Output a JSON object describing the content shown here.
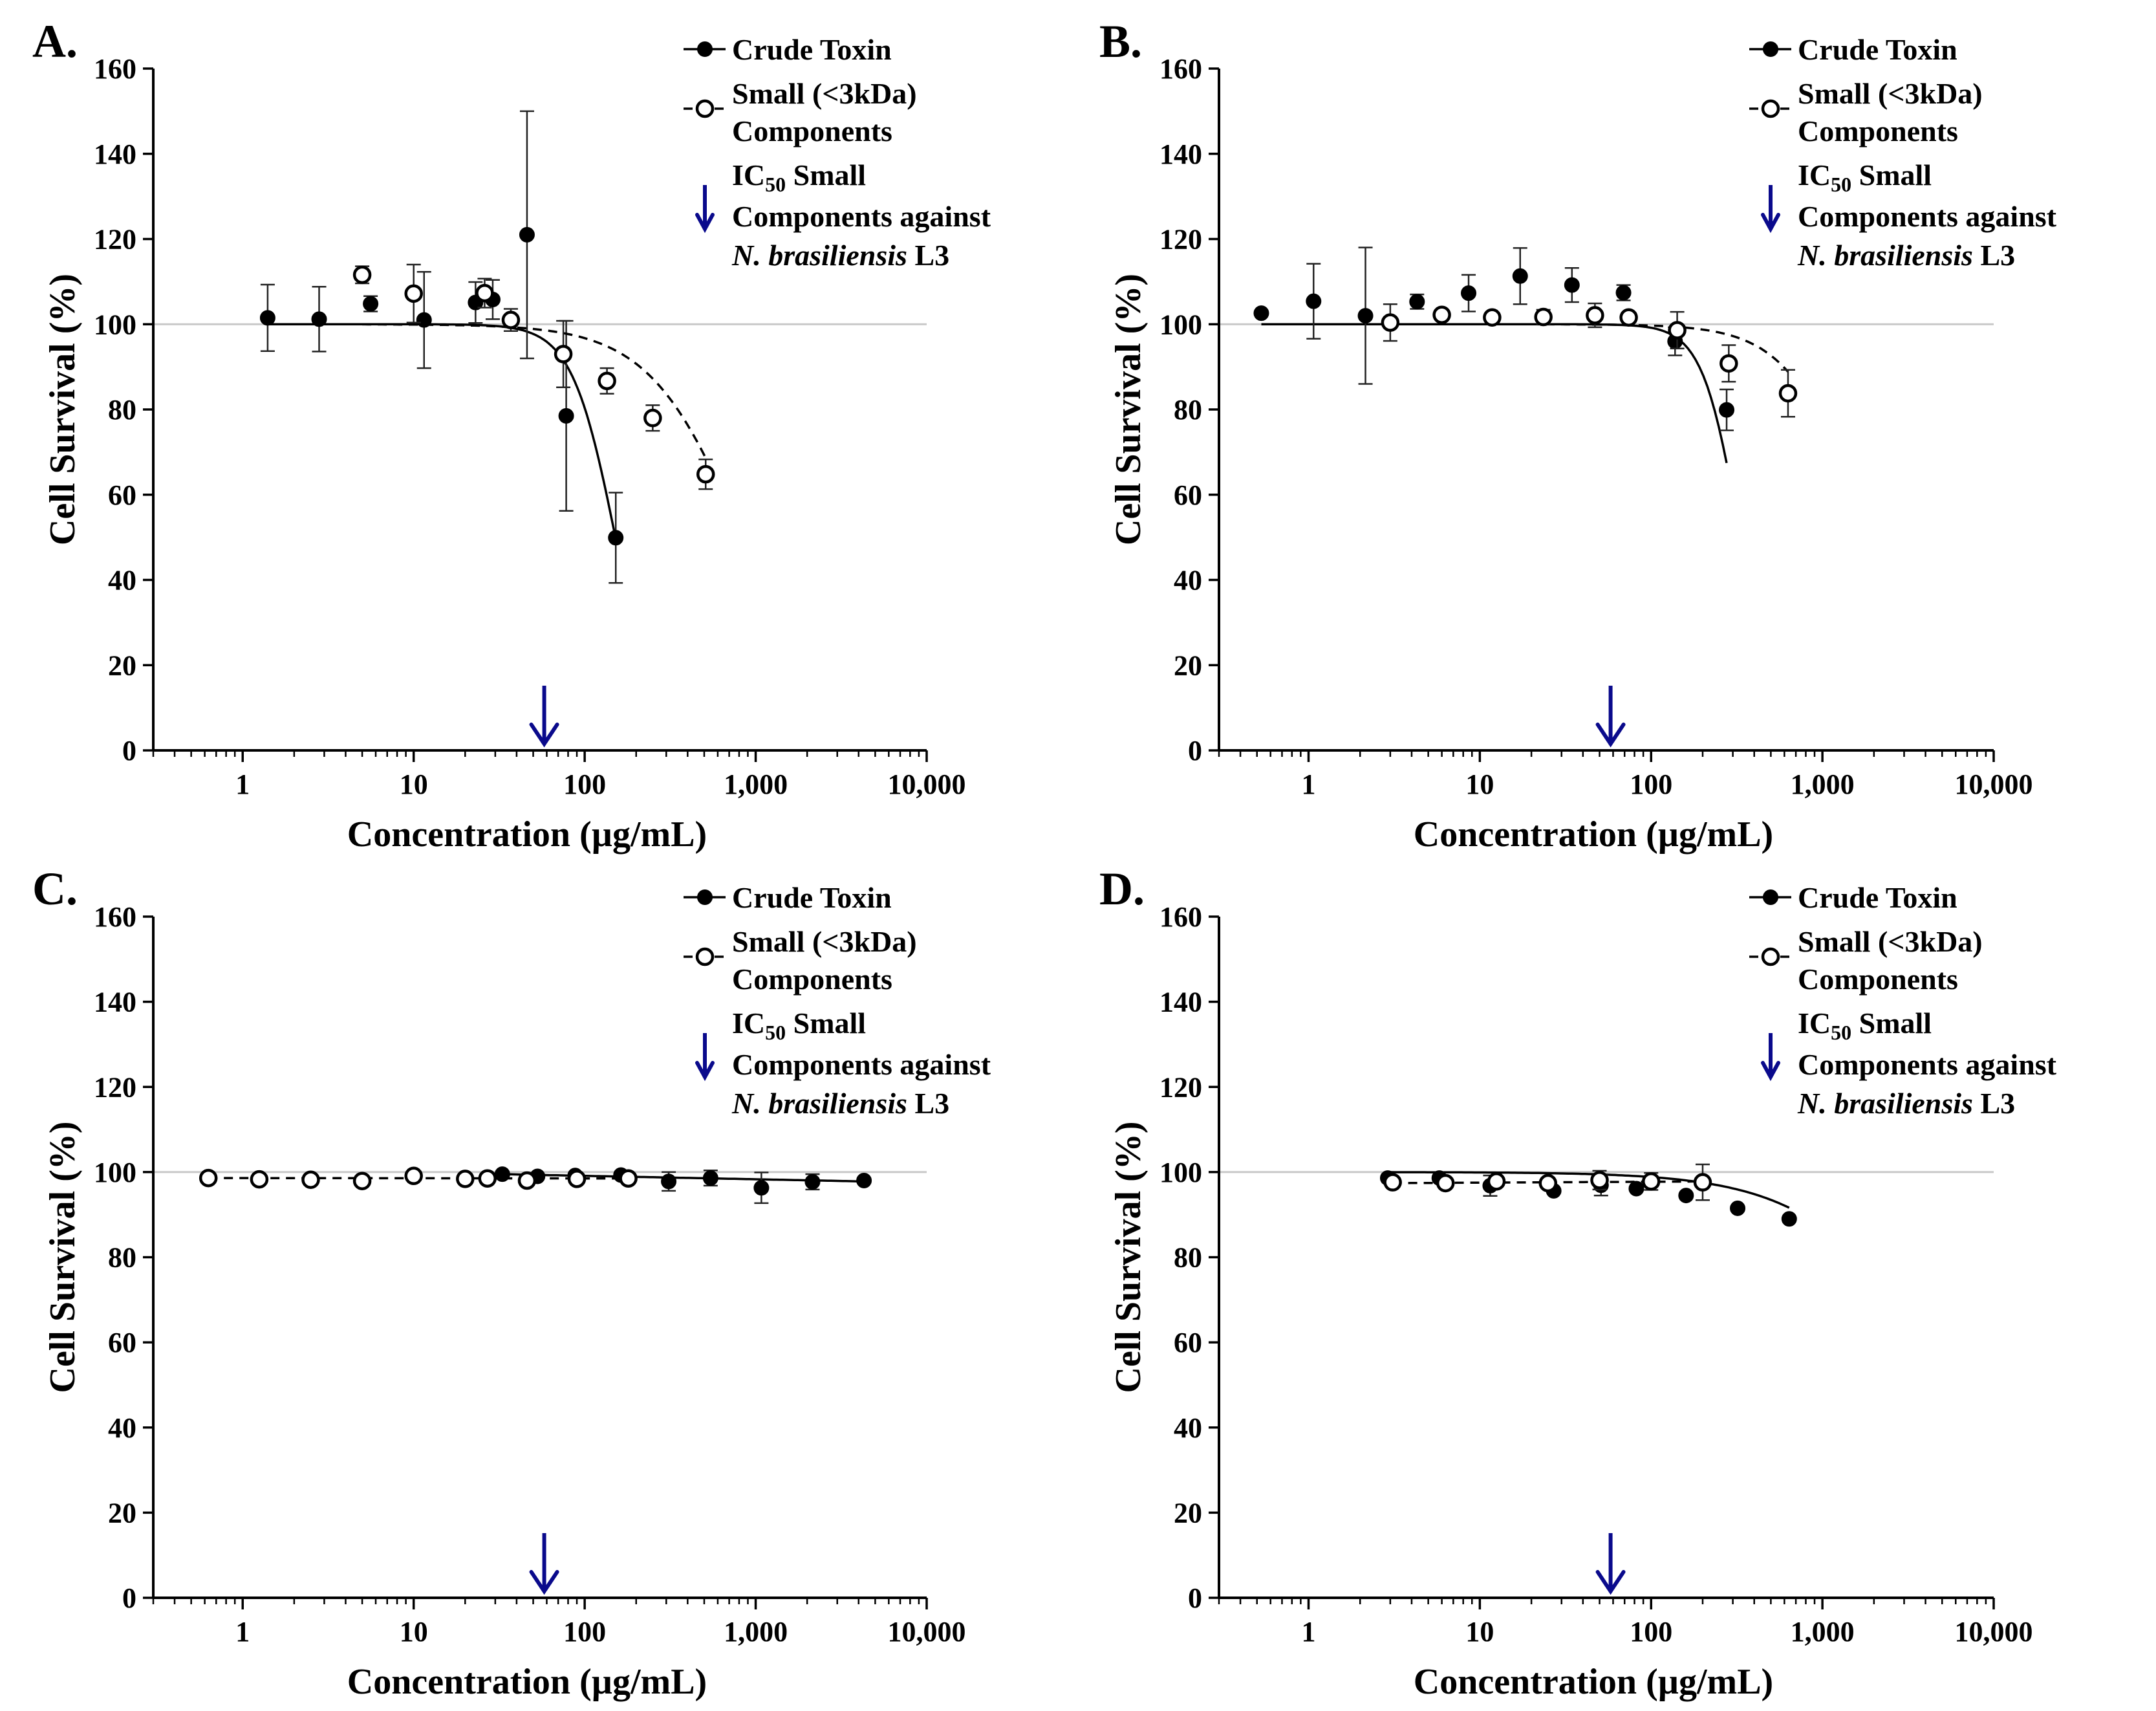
{
  "chart_data": [
    {
      "panel": "A.",
      "type": "scatter",
      "xlabel": "Concentration (µg/mL)",
      "ylabel": "Cell Survival (%)",
      "xscale": "log",
      "xlim": [
        0.3,
        10000
      ],
      "ylim": [
        0,
        160
      ],
      "xticks": [
        1,
        10,
        100,
        1000,
        10000
      ],
      "xtick_labels": [
        "1",
        "10",
        "100",
        "1,000",
        "10,000"
      ],
      "yticks": [
        0,
        20,
        40,
        60,
        80,
        100,
        120,
        140,
        160
      ],
      "reference_line_y": 100,
      "ic50_arrow_x": 58,
      "legend": {
        "position": "top-right",
        "crude": "Crude Toxin",
        "small_line1": "Small (<3kDa)",
        "small_line2": "Components",
        "ic50_prefix": "IC",
        "ic50_sub": "50",
        "ic50_suffix": " Small",
        "ic50_line2": "Components against",
        "ic50_italic": "N. brasiliensis",
        "ic50_tail": " L3"
      },
      "series": [
        {
          "name": "Crude Toxin",
          "marker": "filled",
          "x": [
            1.4,
            2.8,
            5.6,
            11.5,
            23,
            29,
            46,
            78,
            152
          ],
          "y": [
            101.5,
            101.2,
            104.8,
            101.0,
            105.1,
            105.8,
            121.0,
            78.5,
            49.9
          ],
          "err": [
            7.8,
            7.6,
            1.8,
            11.3,
            4.8,
            4.6,
            29.0,
            22.3,
            10.6
          ],
          "fit": {
            "top": 100,
            "logIC50": 2.18,
            "hill": 3.4,
            "xmin": 1.4,
            "xmax": 152
          }
        },
        {
          "name": "Small (<3kDa) Components",
          "marker": "open",
          "x": [
            5,
            10,
            26,
            37,
            75,
            135,
            250,
            510
          ],
          "y": [
            111.6,
            107.2,
            107.3,
            101.0,
            93.0,
            86.7,
            78.0,
            64.8
          ],
          "err": [
            2.0,
            6.8,
            3.4,
            2.6,
            7.8,
            3.0,
            3.0,
            3.5
          ],
          "fit": {
            "top": 100,
            "logIC50": 2.92,
            "hill": 1.6,
            "xmin": 5,
            "xmax": 510
          }
        }
      ]
    },
    {
      "panel": "B.",
      "type": "scatter",
      "xlabel": "Concentration (µg/mL)",
      "ylabel": "Cell Survival (%)",
      "xscale": "log",
      "xlim": [
        0.3,
        10000
      ],
      "ylim": [
        0,
        160
      ],
      "xticks": [
        1,
        10,
        100,
        1000,
        10000
      ],
      "xtick_labels": [
        "1",
        "10",
        "100",
        "1,000",
        "10,000"
      ],
      "yticks": [
        0,
        20,
        40,
        60,
        80,
        100,
        120,
        140,
        160
      ],
      "reference_line_y": 100,
      "ic50_arrow_x": 58,
      "legend": {
        "position": "top-right",
        "crude": "Crude Toxin",
        "small_line1": "Small (<3kDa)",
        "small_line2": "Components",
        "ic50_prefix": "IC",
        "ic50_sub": "50",
        "ic50_suffix": " Small",
        "ic50_line2": "Components against",
        "ic50_italic": "N. brasiliensis",
        "ic50_tail": " L3"
      },
      "series": [
        {
          "name": "Crude Toxin",
          "marker": "filled",
          "x": [
            0.53,
            1.07,
            2.15,
            4.3,
            8.6,
            17.2,
            34.5,
            69,
            138,
            276
          ],
          "y": [
            102.6,
            105.4,
            102.0,
            105.3,
            107.3,
            111.3,
            109.2,
            107.4,
            96.0,
            79.9
          ],
          "err": [
            0,
            8.8,
            16.0,
            1.7,
            4.3,
            6.6,
            4.0,
            1.8,
            3.3,
            4.8
          ],
          "fit": {
            "top": 100,
            "logIC50": 2.52,
            "hill": 4.0,
            "xmin": 0.53,
            "xmax": 276
          }
        },
        {
          "name": "Small (<3kDa) Components",
          "marker": "open",
          "x": [
            3,
            6,
            11.8,
            23.5,
            47,
            74,
            142,
            284,
            630
          ],
          "y": [
            100.4,
            102.2,
            101.6,
            101.7,
            102.1,
            101.6,
            98.6,
            90.8,
            83.8
          ],
          "err": [
            4.3,
            0,
            0,
            1.7,
            2.8,
            0,
            4.3,
            4.3,
            5.5
          ],
          "fit": {
            "top": 100,
            "logIC50": 3.25,
            "hill": 2.0,
            "xmin": 3,
            "xmax": 630
          }
        }
      ]
    },
    {
      "panel": "C.",
      "type": "scatter",
      "xlabel": "Concentration (µg/mL)",
      "ylabel": "Cell Survival (%)",
      "xscale": "log",
      "xlim": [
        0.3,
        10000
      ],
      "ylim": [
        0,
        160
      ],
      "xticks": [
        1,
        10,
        100,
        1000,
        10000
      ],
      "xtick_labels": [
        "1",
        "10",
        "100",
        "1,000",
        "10,000"
      ],
      "yticks": [
        0,
        20,
        40,
        60,
        80,
        100,
        120,
        140,
        160
      ],
      "reference_line_y": 100,
      "ic50_arrow_x": 58,
      "legend": {
        "position": "top-right",
        "crude": "Crude Toxin",
        "small_line1": "Small (<3kDa)",
        "small_line2": "Components",
        "ic50_prefix": "IC",
        "ic50_sub": "50",
        "ic50_suffix": " Small",
        "ic50_line2": "Components against",
        "ic50_italic": "N. brasiliensis",
        "ic50_tail": " L3"
      },
      "series": [
        {
          "name": "Crude Toxin",
          "marker": "filled",
          "x": [
            33,
            53,
            88,
            163,
            310,
            545,
            1080,
            2150,
            4300
          ],
          "y": [
            99.5,
            99.0,
            99.2,
            99.3,
            97.8,
            98.6,
            96.3,
            97.7,
            98.0
          ],
          "err": [
            0,
            0,
            0,
            0,
            2.2,
            1.8,
            3.6,
            1.8,
            0
          ],
          "fit": {
            "linear": true,
            "y0": 99.5,
            "y1": 97.8,
            "xmin": 33,
            "xmax": 4300
          }
        },
        {
          "name": "Small (<3kDa) Components",
          "marker": "open",
          "x": [
            0.63,
            1.25,
            2.5,
            5,
            10,
            20,
            27,
            46,
            90,
            180
          ],
          "y": [
            98.6,
            98.3,
            98.2,
            97.9,
            99.1,
            98.4,
            98.5,
            98.0,
            98.4,
            98.5
          ],
          "err": [
            0,
            0,
            0,
            0,
            0,
            0,
            0,
            0,
            0,
            0
          ],
          "fit": {
            "linear": true,
            "y0": 98.6,
            "y1": 98.5,
            "xmin": 0.63,
            "xmax": 180
          }
        }
      ]
    },
    {
      "panel": "D.",
      "type": "scatter",
      "xlabel": "Concentration (µg/mL)",
      "ylabel": "Cell Survival (%)",
      "xscale": "log",
      "xlim": [
        0.3,
        10000
      ],
      "ylim": [
        0,
        160
      ],
      "xticks": [
        1,
        10,
        100,
        1000,
        10000
      ],
      "xtick_labels": [
        "1",
        "10",
        "100",
        "1,000",
        "10,000"
      ],
      "yticks": [
        0,
        20,
        40,
        60,
        80,
        100,
        120,
        140,
        160
      ],
      "reference_line_y": 100,
      "ic50_arrow_x": 58,
      "legend": {
        "position": "top-right",
        "crude": "Crude Toxin",
        "small_line1": "Small (<3kDa)",
        "small_line2": "Components",
        "ic50_prefix": "IC",
        "ic50_sub": "50",
        "ic50_suffix": " Small",
        "ic50_line2": "Components against",
        "ic50_italic": "N. brasiliensis",
        "ic50_tail": " L3"
      },
      "series": [
        {
          "name": "Crude Toxin",
          "marker": "filled",
          "x": [
            2.9,
            5.8,
            11.5,
            27,
            51,
            82,
            160,
            320,
            640
          ],
          "y": [
            98.6,
            98.6,
            96.8,
            95.6,
            96.9,
            96.1,
            94.5,
            91.5,
            89.0
          ],
          "err": [
            0,
            0,
            2.4,
            0,
            2.4,
            0,
            0,
            0,
            0
          ],
          "fit": {
            "top": 100,
            "logIC50": 3.75,
            "hill": 1.1,
            "xmin": 2.9,
            "xmax": 640
          }
        },
        {
          "name": "Small (<3kDa) Components",
          "marker": "open",
          "x": [
            3.1,
            6.3,
            12.5,
            25,
            50,
            100,
            200
          ],
          "y": [
            97.6,
            97.4,
            97.8,
            97.4,
            98.1,
            97.8,
            97.6
          ],
          "err": [
            0,
            0,
            0,
            0,
            2.2,
            2.0,
            4.2
          ],
          "fit": {
            "linear": true,
            "y0": 97.4,
            "y1": 97.8,
            "xmin": 3.1,
            "xmax": 200
          }
        }
      ]
    }
  ]
}
